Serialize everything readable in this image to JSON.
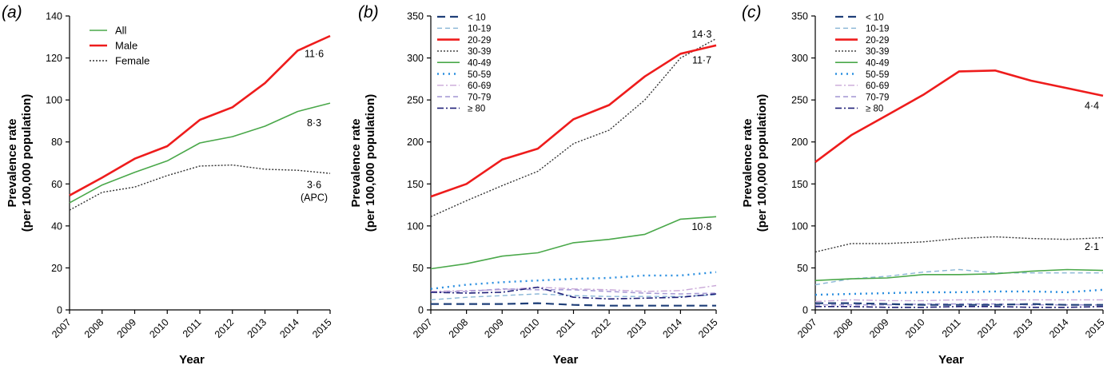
{
  "chart_data": [
    {
      "type": "line",
      "panel_label": "(a)",
      "xlabel": "Year",
      "ylabel_line1": "Prevalence rate",
      "ylabel_line2": "(per 100,000 population)",
      "x": [
        "2007",
        "2008",
        "2009",
        "2010",
        "2011",
        "2012",
        "2013",
        "2014",
        "2015"
      ],
      "ylim": [
        0,
        140
      ],
      "yticks": [
        0,
        20,
        40,
        60,
        80,
        100,
        120,
        140
      ],
      "series": [
        {
          "name": "All",
          "color": "#4aa84a",
          "dash": "solid",
          "width": 1.6,
          "values": [
            51,
            59.5,
            65.5,
            71,
            79.5,
            82.5,
            87.5,
            94.5,
            98.5
          ]
        },
        {
          "name": "Male",
          "color": "#ee1c1c",
          "dash": "solid",
          "width": 2.6,
          "values": [
            54.5,
            63,
            72,
            78,
            90.5,
            96.5,
            108,
            123.5,
            130.5
          ]
        },
        {
          "name": "Female",
          "color": "#333333",
          "dash": "dotted",
          "width": 1.4,
          "values": [
            47.5,
            56,
            58.5,
            64,
            68.5,
            69,
            67,
            66.5,
            65
          ]
        }
      ],
      "annotations": [
        {
          "text": "11·6",
          "x": "2015",
          "y": 122
        },
        {
          "text": "8·3",
          "x": "2015",
          "y": 89
        },
        {
          "text": "3·6",
          "x": "2015",
          "y": 59.5
        },
        {
          "text": "(APC)",
          "x": "2015",
          "y": 53.5
        }
      ],
      "legend_position": "top-left"
    },
    {
      "type": "line",
      "panel_label": "(b)",
      "xlabel": "Year",
      "ylabel_line1": "Prevalence rate",
      "ylabel_line2": "(per 100,000 population)",
      "x": [
        "2007",
        "2008",
        "2009",
        "2010",
        "2011",
        "2012",
        "2013",
        "2014",
        "2015"
      ],
      "ylim": [
        0,
        350
      ],
      "yticks": [
        0,
        50,
        100,
        150,
        200,
        250,
        300,
        350
      ],
      "series": [
        {
          "name": "< 10",
          "color": "#1f3f78",
          "dash": "longdash",
          "width": 2.2,
          "values": [
            7,
            7,
            7,
            8,
            6,
            5,
            5,
            5,
            5
          ]
        },
        {
          "name": "10-19",
          "color": "#8ab6d6",
          "dash": "dash",
          "width": 1.4,
          "values": [
            12,
            15,
            17,
            19,
            17,
            16,
            16,
            16,
            18
          ]
        },
        {
          "name": "20-29",
          "color": "#ee1c1c",
          "dash": "solid",
          "width": 2.6,
          "values": [
            135,
            150,
            179,
            192,
            227,
            244,
            278,
            305,
            315
          ]
        },
        {
          "name": "30-39",
          "color": "#333333",
          "dash": "dotted",
          "width": 1.4,
          "values": [
            111,
            130,
            148,
            165,
            198,
            214,
            250,
            300,
            323
          ]
        },
        {
          "name": "40-49",
          "color": "#4aa84a",
          "dash": "solid",
          "width": 1.6,
          "values": [
            49,
            55,
            64,
            68,
            80,
            84,
            90,
            108,
            111
          ]
        },
        {
          "name": "50-59",
          "color": "#2b8fe0",
          "dash": "dot-bold",
          "width": 2.4,
          "values": [
            25,
            30,
            33,
            35,
            37,
            38,
            41,
            41,
            45
          ]
        },
        {
          "name": "60-69",
          "color": "#c9a8d8",
          "dash": "dashdot",
          "width": 1.4,
          "values": [
            22,
            23,
            24,
            27,
            25,
            24,
            22,
            23,
            29
          ]
        },
        {
          "name": "70-79",
          "color": "#a89cd6",
          "dash": "dash",
          "width": 1.6,
          "values": [
            21,
            22,
            25,
            24,
            24,
            22,
            20,
            19,
            20
          ]
        },
        {
          "name": "≥ 80",
          "color": "#22227a",
          "dash": "dashdot",
          "width": 1.6,
          "values": [
            21,
            20,
            21,
            27,
            15,
            13,
            14,
            15,
            19
          ]
        }
      ],
      "annotations": [
        {
          "text": "14·3",
          "x": "2015",
          "y": 328
        },
        {
          "text": "11·7",
          "x": "2015",
          "y": 297
        },
        {
          "text": "10·8",
          "x": "2015",
          "y": 99
        }
      ],
      "legend_position": "top-left"
    },
    {
      "type": "line",
      "panel_label": "(c)",
      "xlabel": "Year",
      "ylabel_line1": "Prevalence rate",
      "ylabel_line2": "(per 100,000 population)",
      "x": [
        "2007",
        "2008",
        "2009",
        "2010",
        "2011",
        "2012",
        "2013",
        "2014",
        "2015"
      ],
      "ylim": [
        0,
        350
      ],
      "yticks": [
        0,
        50,
        100,
        150,
        200,
        250,
        300,
        350
      ],
      "series": [
        {
          "name": "< 10",
          "color": "#1f3f78",
          "dash": "longdash",
          "width": 2.2,
          "values": [
            8,
            8,
            7,
            6,
            6,
            6,
            7,
            6,
            6
          ]
        },
        {
          "name": "10-19",
          "color": "#8ab6d6",
          "dash": "dash",
          "width": 1.4,
          "values": [
            30,
            37,
            40,
            45,
            48,
            44,
            44,
            44,
            44
          ]
        },
        {
          "name": "20-29",
          "color": "#ee1c1c",
          "dash": "solid",
          "width": 2.6,
          "values": [
            176,
            208,
            232,
            256,
            284,
            285,
            273,
            264,
            255
          ]
        },
        {
          "name": "30-39",
          "color": "#333333",
          "dash": "dotted",
          "width": 1.4,
          "values": [
            69,
            79,
            79,
            81,
            85,
            87,
            85,
            84,
            86
          ]
        },
        {
          "name": "40-49",
          "color": "#4aa84a",
          "dash": "solid",
          "width": 1.6,
          "values": [
            35,
            37,
            38,
            42,
            42,
            43,
            46,
            48,
            47
          ]
        },
        {
          "name": "50-59",
          "color": "#2b8fe0",
          "dash": "dot-bold",
          "width": 2.4,
          "values": [
            18,
            19,
            20,
            21,
            21,
            22,
            22,
            21,
            24
          ]
        },
        {
          "name": "60-69",
          "color": "#c9a8d8",
          "dash": "dashdot",
          "width": 1.4,
          "values": [
            10,
            12,
            11,
            11,
            12,
            12,
            12,
            12,
            12
          ]
        },
        {
          "name": "70-79",
          "color": "#a89cd6",
          "dash": "dash",
          "width": 1.6,
          "values": [
            6,
            6,
            6,
            7,
            7,
            7,
            6,
            6,
            6
          ]
        },
        {
          "name": "≥ 80",
          "color": "#22227a",
          "dash": "dashdot",
          "width": 1.6,
          "values": [
            4,
            4,
            3,
            3,
            4,
            4,
            3,
            3,
            4
          ]
        }
      ],
      "annotations": [
        {
          "text": "4·4",
          "x": "2015",
          "y": 243
        },
        {
          "text": "2·1",
          "x": "2015",
          "y": 75
        }
      ],
      "legend_position": "top-left"
    }
  ]
}
